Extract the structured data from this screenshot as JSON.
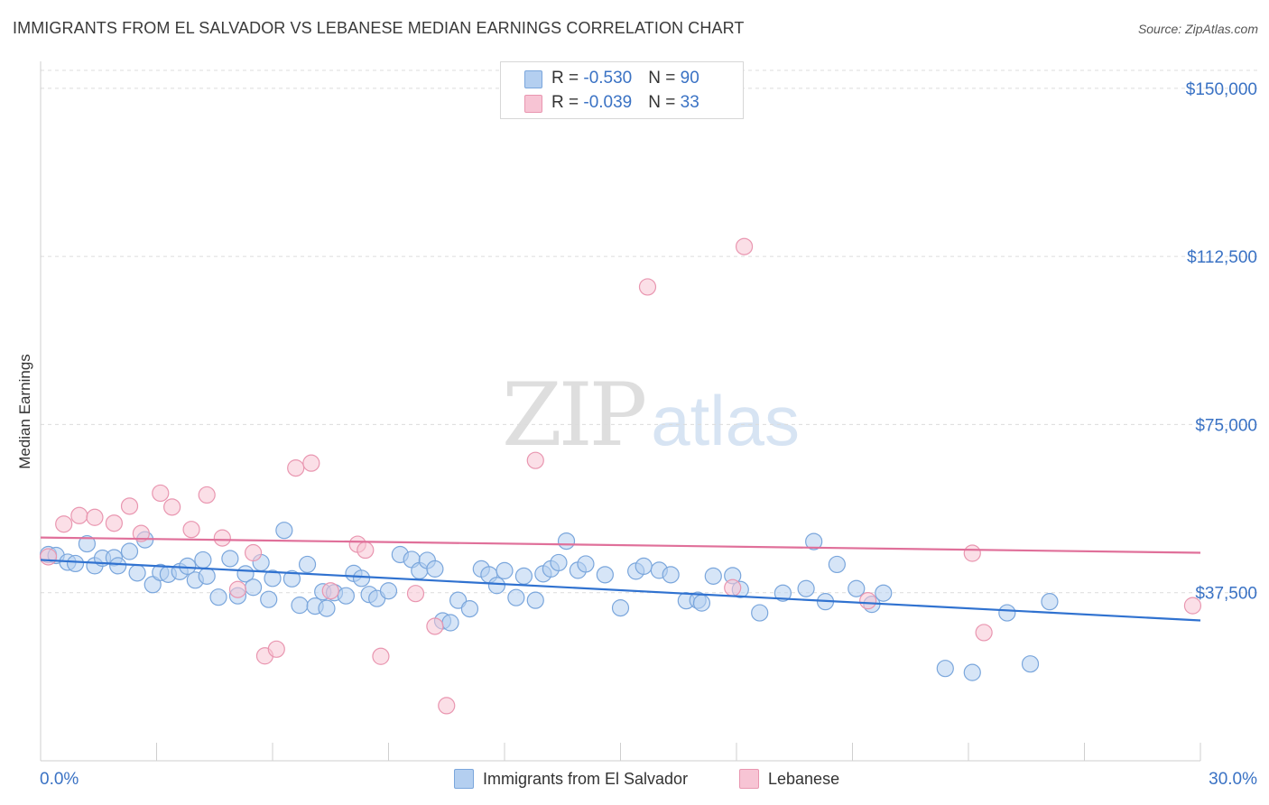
{
  "title": "IMMIGRANTS FROM EL SALVADOR VS LEBANESE MEDIAN EARNINGS CORRELATION CHART",
  "source": "Source: ZipAtlas.com",
  "watermark": {
    "zip": "ZIP",
    "atlas": "atlas"
  },
  "legend": {
    "series1": {
      "r_label": "R = ",
      "r_value": "-0.530",
      "n_label": "N = ",
      "n_value": "90"
    },
    "series2": {
      "r_label": "R = ",
      "r_value": "-0.039",
      "n_label": "N = ",
      "n_value": "33"
    }
  },
  "colors": {
    "blue_fill": "#b4cff0",
    "blue_stroke": "#7aa6dc",
    "blue_line": "#3072d0",
    "pink_fill": "#f7c4d4",
    "pink_stroke": "#e996b0",
    "pink_line": "#e0709a",
    "tick_text": "#3a72c4",
    "grid": "#dcdcdc"
  },
  "chart_data": {
    "type": "scatter",
    "title": "IMMIGRANTS FROM EL SALVADOR VS LEBANESE MEDIAN EARNINGS CORRELATION CHART",
    "xlabel": "",
    "ylabel": "Median Earnings",
    "xlim": [
      0,
      30
    ],
    "ylim": [
      0,
      154000
    ],
    "x_tick_labels": [
      "0.0%",
      "30.0%"
    ],
    "y_ticks": [
      37500,
      75000,
      112500,
      150000
    ],
    "y_tick_labels": [
      "$37,500",
      "$75,000",
      "$112,500",
      "$150,000"
    ],
    "series": [
      {
        "name": "Immigrants from El Salvador",
        "color": "#b4cff0",
        "trend": {
          "x": [
            0,
            30
          ],
          "y": [
            44800,
            31300
          ]
        },
        "points": [
          [
            0.2,
            46000
          ],
          [
            0.4,
            45800
          ],
          [
            0.7,
            44300
          ],
          [
            0.9,
            44000
          ],
          [
            1.2,
            48400
          ],
          [
            1.4,
            43500
          ],
          [
            1.6,
            45200
          ],
          [
            1.9,
            45300
          ],
          [
            2.0,
            43500
          ],
          [
            2.3,
            46700
          ],
          [
            2.5,
            41900
          ],
          [
            2.7,
            49300
          ],
          [
            2.9,
            39300
          ],
          [
            3.1,
            42000
          ],
          [
            3.3,
            41600
          ],
          [
            3.6,
            42200
          ],
          [
            3.8,
            43400
          ],
          [
            4.0,
            40300
          ],
          [
            4.2,
            44800
          ],
          [
            4.3,
            41200
          ],
          [
            4.6,
            36500
          ],
          [
            4.9,
            45100
          ],
          [
            5.1,
            36800
          ],
          [
            5.3,
            41700
          ],
          [
            5.5,
            38700
          ],
          [
            5.7,
            44200
          ],
          [
            5.9,
            36000
          ],
          [
            6.0,
            40700
          ],
          [
            6.3,
            51400
          ],
          [
            6.5,
            40600
          ],
          [
            6.7,
            34700
          ],
          [
            6.9,
            43800
          ],
          [
            7.1,
            34500
          ],
          [
            7.3,
            37700
          ],
          [
            7.4,
            34000
          ],
          [
            7.6,
            37500
          ],
          [
            7.9,
            36800
          ],
          [
            8.1,
            41800
          ],
          [
            8.3,
            40700
          ],
          [
            8.5,
            37100
          ],
          [
            8.7,
            36200
          ],
          [
            9.0,
            37900
          ],
          [
            9.3,
            46000
          ],
          [
            9.6,
            44900
          ],
          [
            9.8,
            42400
          ],
          [
            10.0,
            44700
          ],
          [
            10.2,
            42800
          ],
          [
            10.4,
            31200
          ],
          [
            10.6,
            30800
          ],
          [
            10.8,
            35800
          ],
          [
            11.1,
            33900
          ],
          [
            11.4,
            42800
          ],
          [
            11.6,
            41500
          ],
          [
            11.8,
            39100
          ],
          [
            12.0,
            42400
          ],
          [
            12.3,
            36400
          ],
          [
            12.5,
            41200
          ],
          [
            12.8,
            35800
          ],
          [
            13.0,
            41700
          ],
          [
            13.2,
            42800
          ],
          [
            13.4,
            44200
          ],
          [
            13.6,
            49000
          ],
          [
            13.9,
            42500
          ],
          [
            14.1,
            43900
          ],
          [
            14.6,
            41500
          ],
          [
            15.0,
            34100
          ],
          [
            15.4,
            42300
          ],
          [
            15.6,
            43400
          ],
          [
            16.0,
            42500
          ],
          [
            16.3,
            41500
          ],
          [
            16.7,
            35700
          ],
          [
            17.0,
            35800
          ],
          [
            17.1,
            35200
          ],
          [
            17.4,
            41200
          ],
          [
            17.9,
            41300
          ],
          [
            18.1,
            38200
          ],
          [
            18.6,
            33000
          ],
          [
            19.2,
            37400
          ],
          [
            19.8,
            38400
          ],
          [
            20.0,
            48900
          ],
          [
            20.3,
            35500
          ],
          [
            20.6,
            43800
          ],
          [
            21.1,
            38400
          ],
          [
            21.5,
            34900
          ],
          [
            21.8,
            37400
          ],
          [
            23.4,
            20600
          ],
          [
            24.1,
            19700
          ],
          [
            25.0,
            33000
          ],
          [
            25.6,
            21600
          ],
          [
            26.1,
            35500
          ]
        ]
      },
      {
        "name": "Lebanese",
        "color": "#f7c4d4",
        "trend": {
          "x": [
            0,
            30
          ],
          "y": [
            49800,
            46400
          ]
        },
        "points": [
          [
            0.2,
            45500
          ],
          [
            0.6,
            52800
          ],
          [
            1.0,
            54700
          ],
          [
            1.4,
            54300
          ],
          [
            1.9,
            53000
          ],
          [
            2.3,
            56800
          ],
          [
            2.6,
            50700
          ],
          [
            3.1,
            59700
          ],
          [
            3.4,
            56600
          ],
          [
            3.9,
            51600
          ],
          [
            4.3,
            59300
          ],
          [
            4.7,
            49700
          ],
          [
            5.1,
            38200
          ],
          [
            5.5,
            46400
          ],
          [
            5.8,
            23400
          ],
          [
            6.1,
            24900
          ],
          [
            6.6,
            65300
          ],
          [
            7.0,
            66400
          ],
          [
            7.5,
            37900
          ],
          [
            8.2,
            48300
          ],
          [
            8.4,
            47000
          ],
          [
            8.8,
            23300
          ],
          [
            9.7,
            37300
          ],
          [
            10.2,
            30000
          ],
          [
            10.5,
            12300
          ],
          [
            12.8,
            67000
          ],
          [
            15.7,
            105700
          ],
          [
            17.9,
            38600
          ],
          [
            18.2,
            114700
          ],
          [
            21.4,
            35700
          ],
          [
            24.1,
            46300
          ],
          [
            24.4,
            28600
          ],
          [
            29.8,
            34600
          ]
        ]
      }
    ]
  }
}
